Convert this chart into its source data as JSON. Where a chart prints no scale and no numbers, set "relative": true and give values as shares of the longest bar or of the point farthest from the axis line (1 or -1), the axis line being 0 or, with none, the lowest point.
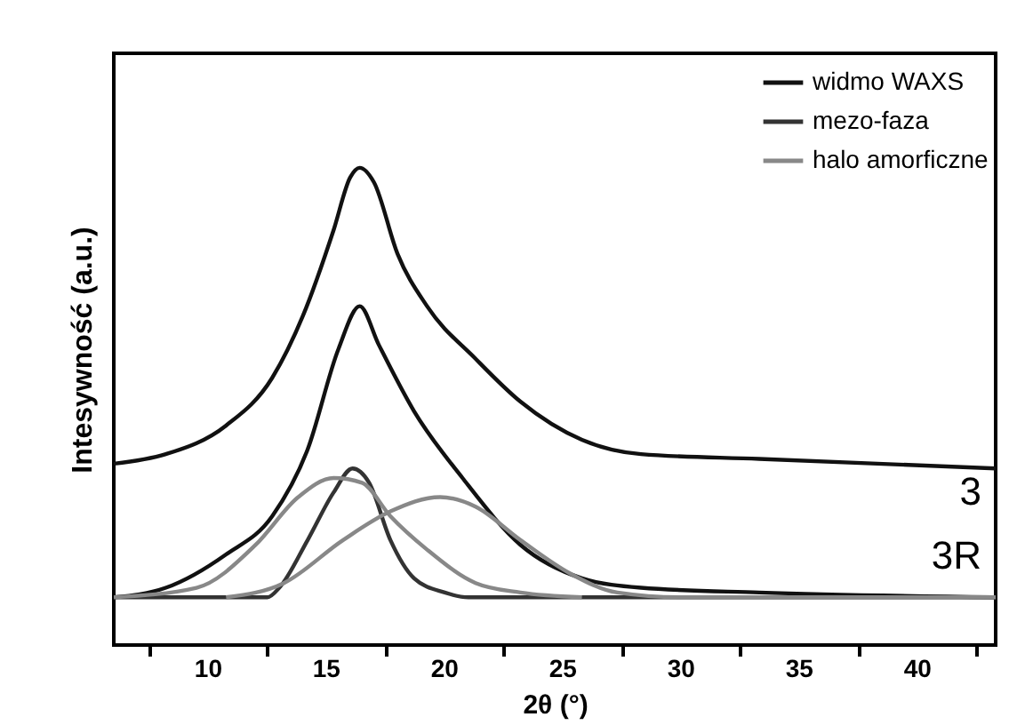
{
  "chart_data": {
    "type": "line",
    "relative": true,
    "xlabel": "2θ (°)",
    "ylabel": "Intesywność (a.u.)",
    "xlim": [
      6,
      43.3
    ],
    "xticks": [
      {
        "value": 7.5,
        "label": null
      },
      10,
      {
        "value": 12.5,
        "label": null
      },
      15,
      {
        "value": 17.5,
        "label": null
      },
      20,
      {
        "value": 22.5,
        "label": null
      },
      25,
      {
        "value": 27.5,
        "label": null
      },
      30,
      {
        "value": 32.5,
        "label": null
      },
      35,
      {
        "value": 37.5,
        "label": null
      },
      40,
      {
        "value": 42.5,
        "label": null
      }
    ],
    "grid": false,
    "legend": "top right",
    "line_style": "solid",
    "series": [
      {
        "name": "widmo WAXS",
        "color": "#111111",
        "x": [
          6.0,
          8.2,
          10.75,
          12.7,
          14.0,
          15.3,
          16.0,
          16.4,
          17.0,
          18.0,
          19.25,
          21.3,
          23.2,
          25.8,
          28.3,
          33.3,
          43.3
        ],
        "values": [
          0.38,
          0.4,
          0.46,
          0.56,
          0.69,
          0.87,
          0.98,
          1.0,
          0.97,
          0.82,
          0.71,
          0.6,
          0.51,
          0.43,
          0.4,
          0.39,
          0.37
        ]
      },
      {
        "color": "#111111",
        "x": [
          6.0,
          8.2,
          10.75,
          12.7,
          14.2,
          15.5,
          16.4,
          17.2,
          18.7,
          20.75,
          23.2,
          25.8,
          28.3,
          33.3,
          43.3
        ],
        "values": [
          0.1,
          0.12,
          0.19,
          0.27,
          0.41,
          0.62,
          0.71,
          0.63,
          0.49,
          0.35,
          0.21,
          0.14,
          0.12,
          0.11,
          0.1
        ]
      },
      {
        "name": "mezo-faza",
        "color": "#333333",
        "x": [
          6.0,
          12.5,
          13.0,
          14.2,
          15.3,
          16.1,
          16.8,
          17.7,
          18.7,
          20.0,
          21.0,
          43.3
        ],
        "values": [
          0.1,
          0.1,
          0.12,
          0.22,
          0.32,
          0.37,
          0.34,
          0.22,
          0.14,
          0.11,
          0.1,
          0.1
        ]
      },
      {
        "name": "halo amorficzne",
        "color": "#888888",
        "x": [
          6.0,
          9.5,
          12.0,
          13.8,
          15.3,
          16.5,
          17.7,
          19.25,
          21.3,
          23.2,
          25.8
        ],
        "values": [
          0.1,
          0.12,
          0.21,
          0.31,
          0.35,
          0.34,
          0.27,
          0.2,
          0.13,
          0.11,
          0.1
        ]
      },
      {
        "color": "#888888",
        "x": [
          10.75,
          13.2,
          15.7,
          17.7,
          19.8,
          21.3,
          23.2,
          25.3,
          27.3,
          30.0,
          43.3
        ],
        "values": [
          0.1,
          0.13,
          0.22,
          0.28,
          0.31,
          0.29,
          0.22,
          0.15,
          0.11,
          0.1,
          0.1
        ]
      }
    ],
    "annotations": [
      "3",
      "3R"
    ]
  }
}
